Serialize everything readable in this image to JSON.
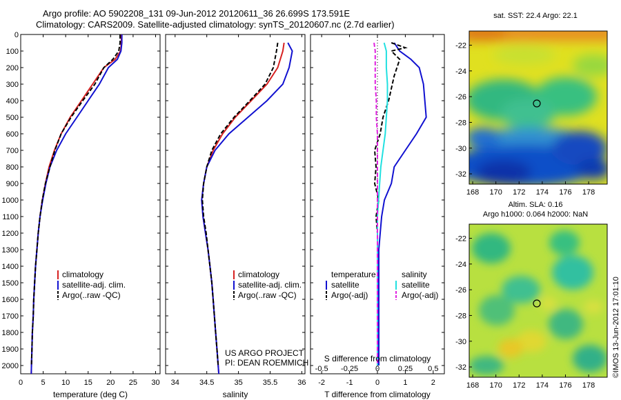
{
  "header": {
    "line1": "Argo profile: AO 5902208_131 09-Jun-2012 20120611_36 26.699S 173.591E",
    "line2": "Climatology: CARS2009. Satellite-adjusted climatology: synTS_20120607.nc (2.7d earlier)"
  },
  "colors": {
    "climatology": "#d62020",
    "satellite": "#1010d0",
    "argo": "#000000",
    "temp_satellite_diff": "#1010d0",
    "sal_satellite_diff": "#20e0e0",
    "sal_argo_diff": "#e020e0"
  },
  "panel_temperature": {
    "xlabel": "temperature (deg C)",
    "legend": [
      "climatology",
      "satellite-adj. clim.",
      "Argo(..raw -QC)"
    ]
  },
  "panel_salinity": {
    "xlabel": "salinity",
    "legend": [
      "climatology",
      "satellite-adj. clim.",
      "Argo(..raw -QC)"
    ],
    "credit1": "US ARGO PROJECT",
    "credit2": "PI: DEAN ROEMMICH"
  },
  "panel_difference": {
    "xlabel": "T difference from climatology",
    "top_label": "S difference from climatology",
    "legend_temp_head": "temperature",
    "legend_sal_head": "salinity",
    "legend_temp": [
      "satellite",
      "Argo(-adj)"
    ],
    "legend_sal": [
      "satellite",
      "Argo(-adj)"
    ]
  },
  "map_sst": {
    "title": "sat. SST: 22.4  Argo: 22.1",
    "xticks": [
      "168",
      "170",
      "172",
      "174",
      "176",
      "178"
    ],
    "yticks": [
      "-22",
      "-24",
      "-26",
      "-28",
      "-30",
      "-32"
    ],
    "marker_lon": 173.59,
    "marker_lat": -26.7
  },
  "map_sla": {
    "title1": "Altim. SLA: 0.16",
    "title2": "Argo h1000: 0.064  h2000: NaN",
    "xticks": [
      "168",
      "170",
      "172",
      "174",
      "176",
      "178"
    ],
    "yticks": [
      "-22",
      "-24",
      "-26",
      "-28",
      "-30",
      "-32"
    ],
    "marker_lon": 173.59,
    "marker_lat": -26.7
  },
  "side_stamp": "©IMOS 13-Jun-2012 17:01:10",
  "chart_data": [
    {
      "type": "line",
      "name": "temperature profile",
      "xlabel": "temperature (deg C)",
      "ylabel": "",
      "xlim": [
        0,
        31
      ],
      "ylim": [
        2050,
        0
      ],
      "xticks": [
        0,
        5,
        10,
        15,
        20,
        25,
        30
      ],
      "yticks": [
        0,
        100,
        200,
        300,
        400,
        500,
        600,
        700,
        800,
        900,
        1000,
        1100,
        1200,
        1300,
        1400,
        1500,
        1600,
        1700,
        1800,
        1900,
        2000
      ],
      "grid": false,
      "legend_position": "lower-center",
      "series": [
        {
          "name": "climatology",
          "style": "solid",
          "color": "#d62020",
          "points": [
            [
              22.4,
              0
            ],
            [
              22.4,
              50
            ],
            [
              22.2,
              100
            ],
            [
              21,
              150
            ],
            [
              18.5,
              200
            ],
            [
              16,
              300
            ],
            [
              13.5,
              400
            ],
            [
              11,
              500
            ],
            [
              9,
              600
            ],
            [
              7.5,
              700
            ],
            [
              6.3,
              800
            ],
            [
              5.5,
              900
            ],
            [
              4.8,
              1000
            ],
            [
              4.3,
              1100
            ],
            [
              3.9,
              1200
            ],
            [
              3.6,
              1300
            ],
            [
              3.3,
              1400
            ],
            [
              3.1,
              1500
            ],
            [
              2.9,
              1600
            ],
            [
              2.8,
              1700
            ],
            [
              2.6,
              1800
            ],
            [
              2.5,
              1900
            ],
            [
              2.4,
              2000
            ],
            [
              2.35,
              2050
            ]
          ]
        },
        {
          "name": "satellite-adj. clim.",
          "style": "solid",
          "color": "#1010d0",
          "points": [
            [
              22.5,
              0
            ],
            [
              22.5,
              50
            ],
            [
              22.3,
              100
            ],
            [
              21.5,
              150
            ],
            [
              19.5,
              200
            ],
            [
              17.5,
              300
            ],
            [
              15,
              400
            ],
            [
              12.5,
              500
            ],
            [
              10,
              600
            ],
            [
              8,
              700
            ],
            [
              6.5,
              800
            ],
            [
              5.6,
              900
            ],
            [
              4.9,
              1000
            ],
            [
              4.3,
              1100
            ],
            [
              3.9,
              1200
            ],
            [
              3.6,
              1300
            ],
            [
              3.3,
              1400
            ],
            [
              3.1,
              1500
            ],
            [
              2.9,
              1600
            ],
            [
              2.8,
              1700
            ],
            [
              2.6,
              1800
            ],
            [
              2.5,
              1900
            ],
            [
              2.4,
              2000
            ],
            [
              2.35,
              2050
            ]
          ]
        },
        {
          "name": "Argo(..raw -QC)",
          "style": "dashed",
          "color": "#000000",
          "points": [
            [
              22.1,
              0
            ],
            [
              22.1,
              50
            ],
            [
              21.8,
              100
            ],
            [
              20.5,
              150
            ],
            [
              18.5,
              200
            ],
            [
              16.5,
              300
            ],
            [
              13.8,
              400
            ],
            [
              11.2,
              500
            ],
            [
              9,
              600
            ],
            [
              7.6,
              700
            ],
            [
              6.5,
              800
            ],
            [
              5.5,
              900
            ],
            [
              4.8,
              1000
            ],
            [
              4.3,
              1100
            ],
            [
              3.9,
              1200
            ],
            [
              3.6,
              1300
            ],
            [
              3.3,
              1400
            ],
            [
              3.1,
              1500
            ],
            [
              2.9,
              1600
            ],
            [
              2.8,
              1700
            ],
            [
              2.6,
              1800
            ],
            [
              2.5,
              1900
            ],
            [
              2.4,
              2000
            ]
          ]
        }
      ]
    },
    {
      "type": "line",
      "name": "salinity profile",
      "xlabel": "salinity",
      "ylabel": "",
      "xlim": [
        33.85,
        36.05
      ],
      "ylim": [
        2050,
        0
      ],
      "xticks": [
        34,
        34.5,
        35,
        35.5,
        36
      ],
      "grid": false,
      "legend_position": "lower-right",
      "series": [
        {
          "name": "climatology",
          "style": "solid",
          "color": "#d62020",
          "points": [
            [
              35.72,
              50
            ],
            [
              35.7,
              100
            ],
            [
              35.62,
              200
            ],
            [
              35.45,
              300
            ],
            [
              35.2,
              400
            ],
            [
              34.95,
              500
            ],
            [
              34.75,
              600
            ],
            [
              34.6,
              700
            ],
            [
              34.5,
              800
            ],
            [
              34.45,
              900
            ],
            [
              34.42,
              1000
            ],
            [
              34.44,
              1100
            ],
            [
              34.48,
              1200
            ],
            [
              34.52,
              1300
            ],
            [
              34.55,
              1400
            ],
            [
              34.58,
              1500
            ],
            [
              34.6,
              1600
            ],
            [
              34.62,
              1700
            ],
            [
              34.64,
              1800
            ],
            [
              34.66,
              1900
            ],
            [
              34.68,
              2000
            ],
            [
              34.69,
              2050
            ]
          ]
        },
        {
          "name": "satellite-adj. clim.",
          "style": "solid",
          "color": "#1010d0",
          "points": [
            [
              35.78,
              50
            ],
            [
              35.85,
              100
            ],
            [
              35.8,
              200
            ],
            [
              35.7,
              300
            ],
            [
              35.45,
              400
            ],
            [
              35.15,
              500
            ],
            [
              34.85,
              600
            ],
            [
              34.63,
              700
            ],
            [
              34.5,
              800
            ],
            [
              34.45,
              900
            ],
            [
              34.42,
              1000
            ],
            [
              34.44,
              1100
            ],
            [
              34.48,
              1200
            ],
            [
              34.52,
              1300
            ],
            [
              34.55,
              1400
            ],
            [
              34.58,
              1500
            ],
            [
              34.6,
              1600
            ],
            [
              34.62,
              1700
            ],
            [
              34.64,
              1800
            ],
            [
              34.66,
              1900
            ],
            [
              34.68,
              2000
            ],
            [
              34.69,
              2050
            ]
          ]
        },
        {
          "name": "Argo(..raw -QC)",
          "style": "dashed",
          "color": "#000000",
          "points": [
            [
              35.62,
              50
            ],
            [
              35.6,
              100
            ],
            [
              35.55,
              200
            ],
            [
              35.42,
              300
            ],
            [
              35.18,
              400
            ],
            [
              34.93,
              500
            ],
            [
              34.72,
              600
            ],
            [
              34.58,
              700
            ],
            [
              34.5,
              800
            ],
            [
              34.45,
              900
            ],
            [
              34.43,
              1000
            ],
            [
              34.45,
              1100
            ],
            [
              34.49,
              1200
            ],
            [
              34.52,
              1300
            ],
            [
              34.55,
              1400
            ],
            [
              34.58,
              1500
            ],
            [
              34.6,
              1600
            ],
            [
              34.62,
              1700
            ],
            [
              34.64,
              1800
            ],
            [
              34.66,
              1900
            ],
            [
              34.68,
              2000
            ]
          ]
        }
      ]
    },
    {
      "type": "line",
      "name": "difference from climatology",
      "xlabel": "T difference from climatology",
      "x2label": "S difference from climatology",
      "ylabel": "",
      "xlim": [
        -2.4,
        2.4
      ],
      "ylim": [
        2050,
        0
      ],
      "xticks": [
        -2,
        -1,
        0,
        1,
        2
      ],
      "x2lim": [
        -0.6,
        0.6
      ],
      "x2ticks": [
        -0.5,
        -0.25,
        0,
        0.25,
        0.5
      ],
      "grid": false,
      "legend_position": "lower-center",
      "series": [
        {
          "name": "temperature satellite",
          "axis": "T",
          "style": "solid",
          "color": "#1010d0",
          "points": [
            [
              0.6,
              50
            ],
            [
              0.8,
              100
            ],
            [
              1.2,
              150
            ],
            [
              1.5,
              200
            ],
            [
              1.65,
              300
            ],
            [
              1.7,
              400
            ],
            [
              1.75,
              500
            ],
            [
              1.4,
              600
            ],
            [
              1.0,
              700
            ],
            [
              0.6,
              800
            ],
            [
              0.5,
              900
            ],
            [
              0.25,
              1000
            ],
            [
              0.15,
              1100
            ],
            [
              0.1,
              1200
            ],
            [
              0.05,
              1300
            ],
            [
              0.05,
              1500
            ],
            [
              0.05,
              2000
            ]
          ]
        },
        {
          "name": "temperature Argo(-adj)",
          "axis": "T",
          "style": "dashed",
          "color": "#000000",
          "points": [
            [
              0.5,
              50
            ],
            [
              1.0,
              80
            ],
            [
              0.5,
              100
            ],
            [
              0.8,
              150
            ],
            [
              0.6,
              250
            ],
            [
              0.4,
              400
            ],
            [
              0.2,
              500
            ],
            [
              0.1,
              600
            ],
            [
              -0.1,
              700
            ],
            [
              -0.05,
              800
            ],
            [
              -0.1,
              900
            ],
            [
              0.05,
              1000
            ],
            [
              -0.05,
              1100
            ],
            [
              0,
              1200
            ],
            [
              0,
              1500
            ],
            [
              0,
              2000
            ]
          ]
        },
        {
          "name": "salinity satellite",
          "axis": "S",
          "style": "solid",
          "color": "#20e0e0",
          "points": [
            [
              0.06,
              50
            ],
            [
              0.08,
              100
            ],
            [
              0.08,
              200
            ],
            [
              0.09,
              300
            ],
            [
              0.09,
              400
            ],
            [
              0.08,
              500
            ],
            [
              0.07,
              600
            ],
            [
              0.05,
              700
            ],
            [
              0.03,
              800
            ],
            [
              0.02,
              900
            ],
            [
              0.01,
              1000
            ],
            [
              0.0,
              1100
            ],
            [
              0.0,
              2000
            ]
          ]
        },
        {
          "name": "salinity Argo(-adj)",
          "axis": "S",
          "style": "dashed",
          "color": "#e020e0",
          "points": [
            [
              -0.03,
              50
            ],
            [
              -0.02,
              100
            ],
            [
              -0.02,
              200
            ],
            [
              -0.02,
              300
            ],
            [
              -0.01,
              400
            ],
            [
              -0.01,
              500
            ],
            [
              0,
              600
            ],
            [
              0,
              700
            ],
            [
              0,
              800
            ],
            [
              0,
              1000
            ],
            [
              0,
              2000
            ]
          ]
        }
      ]
    }
  ]
}
